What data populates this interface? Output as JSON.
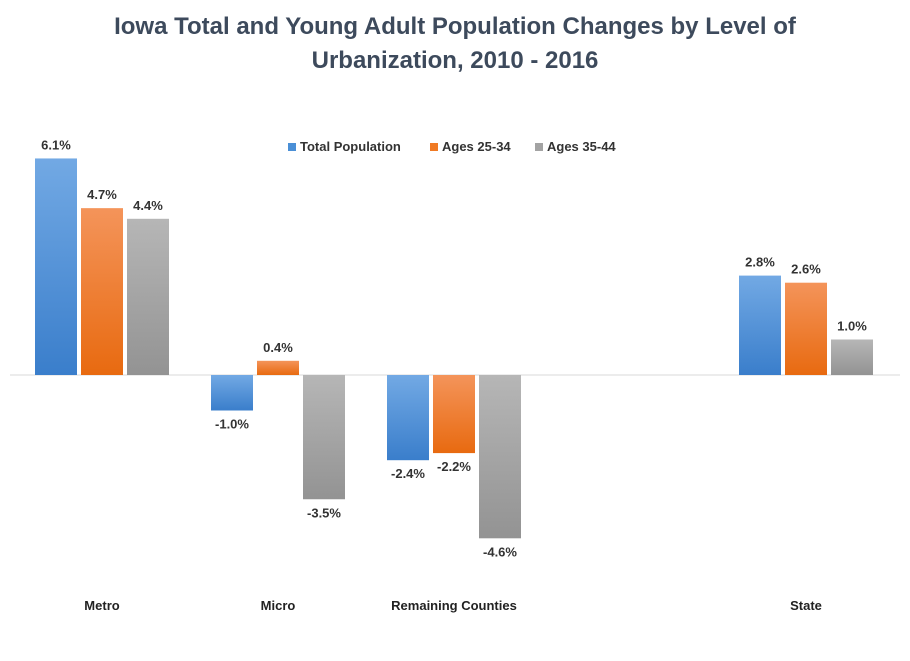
{
  "chart_data": {
    "type": "bar",
    "title_line1": "Iowa Total and Young Adult Population Changes by Level of",
    "title_line2": "Urbanization, 2010 - 2016",
    "categories": [
      "Metro",
      "Micro",
      "Remaining Counties",
      "",
      "State"
    ],
    "series": [
      {
        "name": "Total Population",
        "color": "#4a8fd6",
        "values": [
          6.1,
          -1.0,
          -2.4,
          null,
          2.8
        ],
        "labels": [
          "6.1%",
          "-1.0%",
          "-2.4%",
          "",
          "2.8%"
        ]
      },
      {
        "name": "Ages 25-34",
        "color": "#f07a24",
        "values": [
          4.7,
          0.4,
          -2.2,
          null,
          2.6
        ],
        "labels": [
          "4.7%",
          "0.4%",
          "-2.2%",
          "",
          "2.6%"
        ]
      },
      {
        "name": "Ages 35-44",
        "color": "#a3a3a3",
        "values": [
          4.4,
          -3.5,
          -4.6,
          null,
          1.0
        ],
        "labels": [
          "4.4%",
          "-3.5%",
          "-4.6%",
          "",
          "1.0%"
        ]
      }
    ],
    "legend_position": "top",
    "grid": false
  }
}
